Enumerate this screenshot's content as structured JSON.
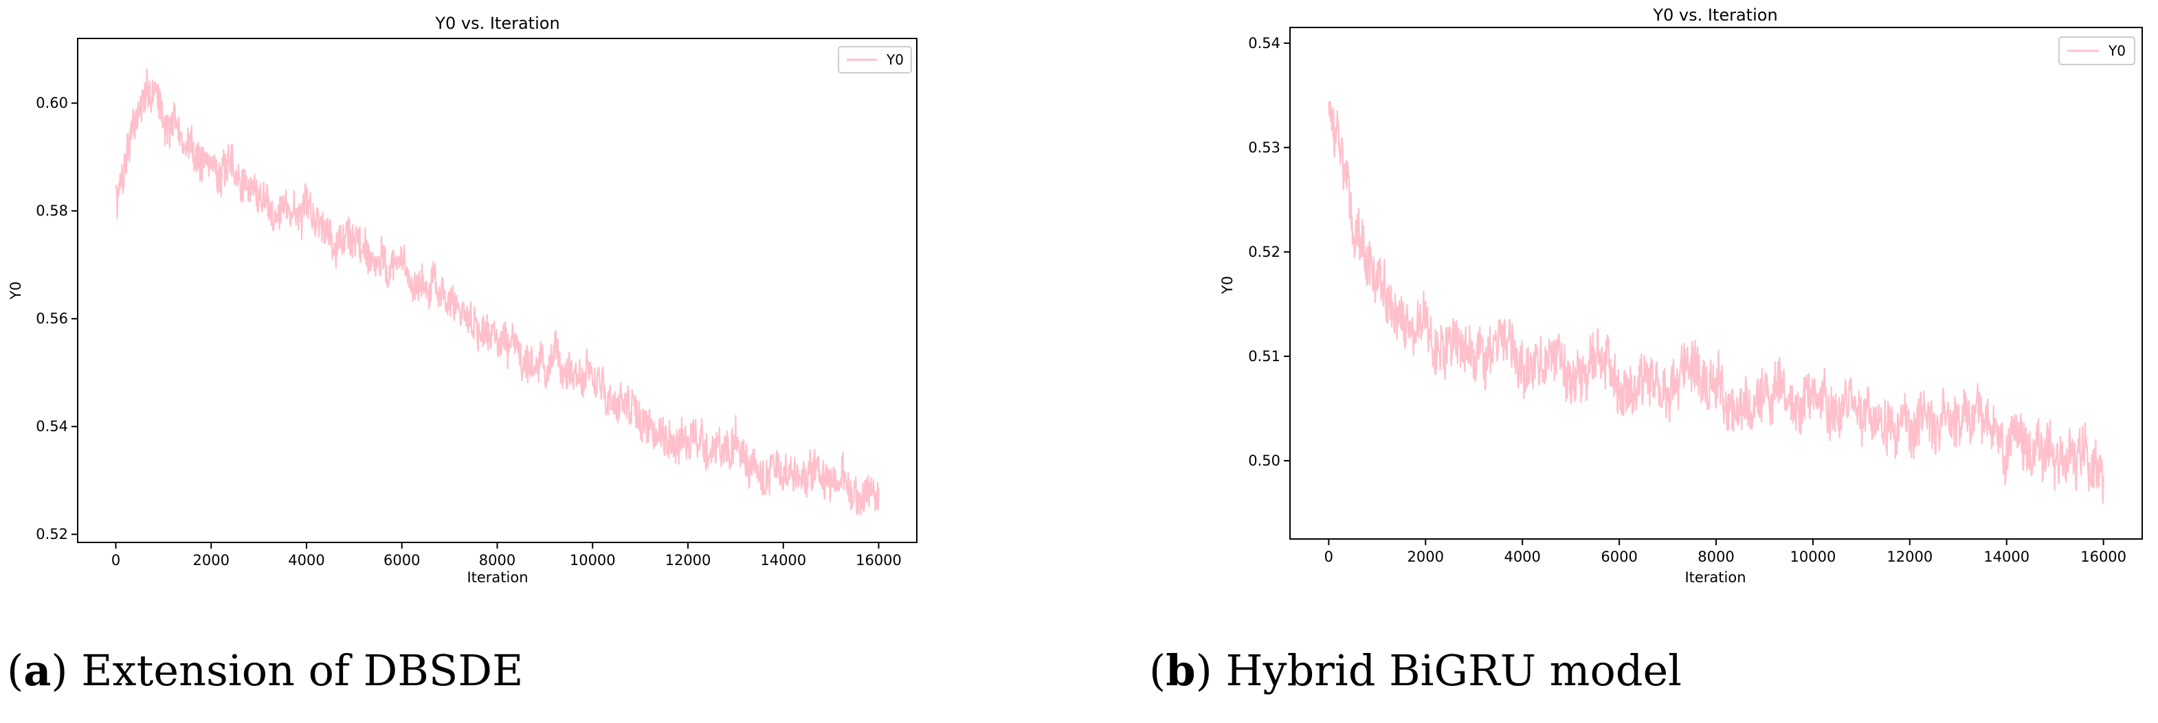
{
  "captions": [
    {
      "letter": "a",
      "text": "Extension of DBSDE"
    },
    {
      "letter": "b",
      "text": "Hybrid BiGRU model"
    }
  ],
  "chart_data": [
    {
      "type": "line",
      "title": "Y0 vs. Iteration",
      "xlabel": "Iteration",
      "ylabel": "Y0",
      "xlim": [
        -800,
        16800
      ],
      "ylim": [
        0.5185,
        0.612
      ],
      "xticks": [
        0,
        2000,
        4000,
        6000,
        8000,
        10000,
        12000,
        14000,
        16000
      ],
      "yticks": [
        0.52,
        0.54,
        0.56,
        0.58,
        0.6
      ],
      "ytick_labels": [
        "0.52",
        "0.54",
        "0.56",
        "0.58",
        "0.60"
      ],
      "legend": "upper right",
      "grid": false,
      "color": "#ffc0cb",
      "series": [
        {
          "name": "Y0",
          "x": [
            0,
            100,
            200,
            300,
            400,
            500,
            600,
            700,
            800,
            900,
            1000,
            1200,
            1400,
            1600,
            1800,
            2000,
            2500,
            3000,
            3500,
            4000,
            4500,
            5000,
            5500,
            6000,
            6500,
            7000,
            7500,
            8000,
            8500,
            9000,
            9500,
            10000,
            10500,
            11000,
            11500,
            12000,
            12500,
            13000,
            13500,
            14000,
            14500,
            15000,
            15500,
            16000
          ],
          "values": [
            0.582,
            0.585,
            0.59,
            0.595,
            0.597,
            0.599,
            0.6,
            0.601,
            0.603,
            0.6,
            0.598,
            0.596,
            0.593,
            0.591,
            0.59,
            0.589,
            0.586,
            0.583,
            0.581,
            0.579,
            0.577,
            0.575,
            0.572,
            0.569,
            0.566,
            0.563,
            0.56,
            0.557,
            0.554,
            0.552,
            0.55,
            0.548,
            0.545,
            0.541,
            0.539,
            0.537,
            0.536,
            0.535,
            0.533,
            0.531,
            0.53,
            0.529,
            0.528,
            0.526
          ],
          "noise_band": 0.004
        }
      ]
    },
    {
      "type": "line",
      "title": "Y0 vs. Iteration",
      "xlabel": "Iteration",
      "ylabel": "Y0",
      "xlim": [
        -800,
        16800
      ],
      "ylim": [
        0.4925,
        0.5415
      ],
      "xticks": [
        0,
        2000,
        4000,
        6000,
        8000,
        10000,
        12000,
        14000,
        16000
      ],
      "yticks": [
        0.5,
        0.51,
        0.52,
        0.53,
        0.54
      ],
      "ytick_labels": [
        "0.50",
        "0.51",
        "0.52",
        "0.53",
        "0.54"
      ],
      "legend": "upper right",
      "grid": false,
      "color": "#ffc0cb",
      "series": [
        {
          "name": "Y0",
          "x": [
            0,
            100,
            200,
            300,
            400,
            500,
            600,
            800,
            1000,
            1200,
            1500,
            2000,
            2500,
            3000,
            3500,
            4000,
            4500,
            5000,
            5500,
            6000,
            6500,
            7000,
            7500,
            8000,
            8500,
            9000,
            9500,
            10000,
            10500,
            11000,
            11500,
            12000,
            12500,
            13000,
            13500,
            14000,
            14500,
            15000,
            15500,
            16000
          ],
          "values": [
            0.535,
            0.532,
            0.53,
            0.527,
            0.525,
            0.523,
            0.521,
            0.519,
            0.517,
            0.515,
            0.513,
            0.512,
            0.511,
            0.511,
            0.51,
            0.509,
            0.508,
            0.509,
            0.509,
            0.509,
            0.508,
            0.507,
            0.507,
            0.506,
            0.506,
            0.506,
            0.505,
            0.505,
            0.505,
            0.505,
            0.504,
            0.504,
            0.504,
            0.503,
            0.503,
            0.502,
            0.502,
            0.501,
            0.5,
            0.499
          ],
          "noise_band": 0.0028
        }
      ]
    }
  ]
}
